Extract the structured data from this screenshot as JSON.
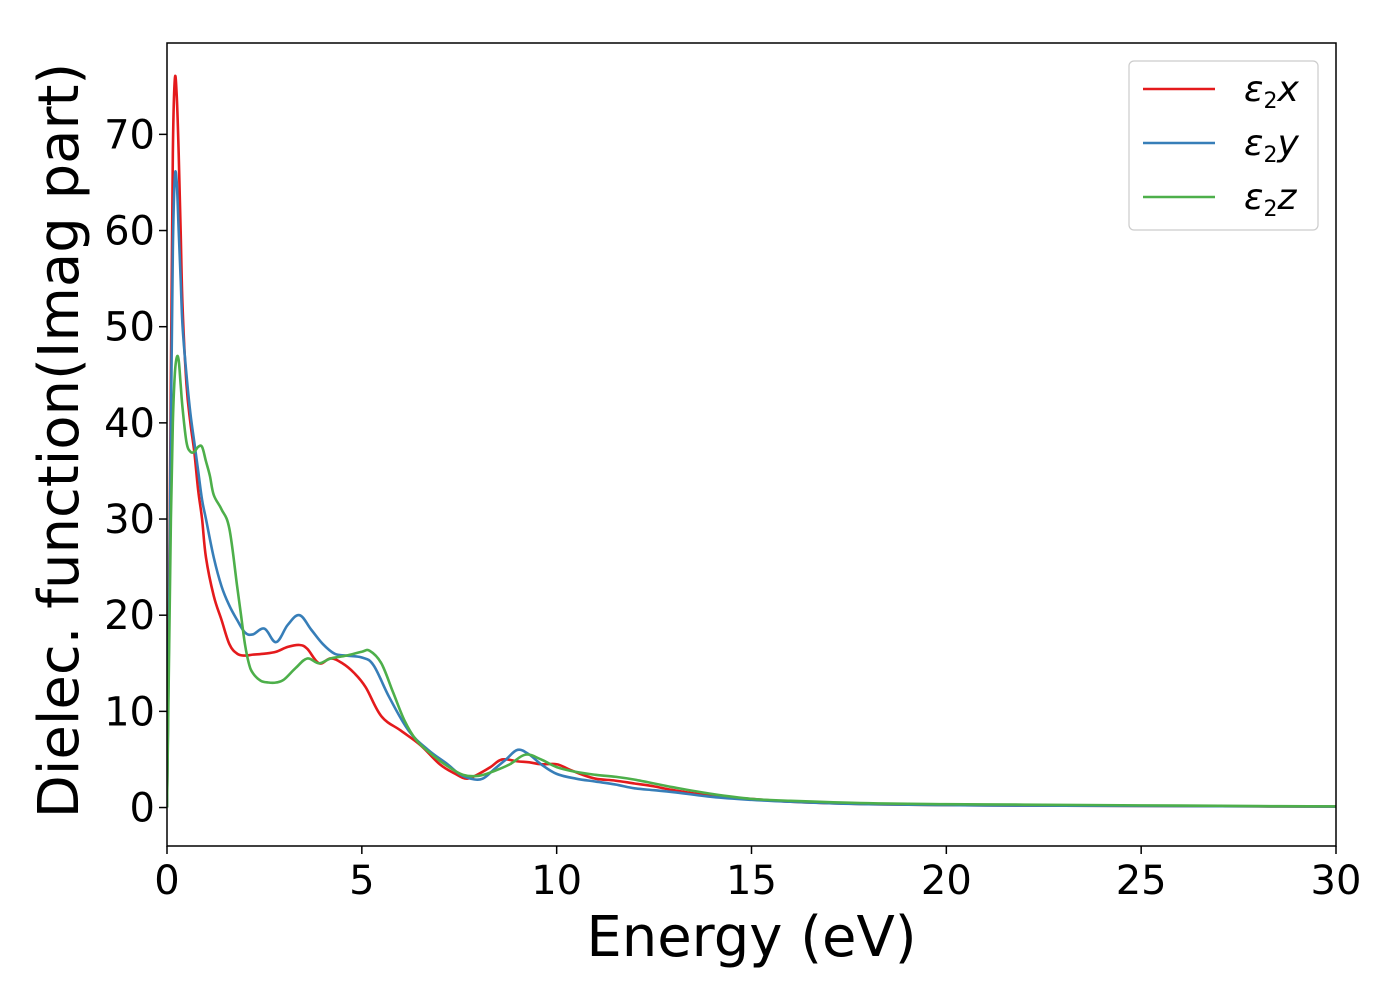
{
  "chart_data": {
    "type": "line",
    "title": "",
    "xlabel": "Energy (eV)",
    "ylabel": "Dielec. function(Imag part)",
    "xlim": [
      0,
      30
    ],
    "ylim": [
      -4,
      79.5
    ],
    "xticks": [
      0,
      5,
      10,
      15,
      20,
      25,
      30
    ],
    "yticks": [
      0,
      10,
      20,
      30,
      40,
      50,
      60,
      70
    ],
    "grid": false,
    "legend_position": "top-right",
    "series": [
      {
        "name": "ε2x",
        "legend": {
          "base": "ε",
          "sub": "2",
          "suffix": "x"
        },
        "color": "#e41a1c",
        "x": [
          0,
          0.05,
          0.1,
          0.15,
          0.2,
          0.25,
          0.3,
          0.35,
          0.4,
          0.5,
          0.6,
          0.7,
          0.8,
          0.9,
          1.0,
          1.2,
          1.4,
          1.6,
          1.8,
          2.0,
          2.2,
          2.5,
          2.8,
          3.1,
          3.4,
          3.6,
          3.9,
          4.2,
          4.5,
          4.8,
          5.1,
          5.5,
          6.0,
          6.5,
          7.0,
          7.4,
          7.7,
          8.0,
          8.3,
          8.6,
          9.0,
          9.3,
          9.6,
          10.0,
          10.3,
          10.6,
          11.0,
          11.5,
          12.0,
          12.5,
          13.0,
          14.0,
          15.0,
          16.0,
          17.0,
          18.0,
          19.0,
          20.0,
          22.0,
          24.0,
          26.0,
          28.0,
          30.0
        ],
        "y": [
          0,
          20,
          45,
          68,
          75.7,
          74,
          68,
          60,
          52,
          44,
          40,
          37,
          33,
          30,
          26,
          22,
          19.5,
          17,
          16,
          15.8,
          15.9,
          16,
          16.2,
          16.7,
          16.9,
          16.5,
          15,
          15.5,
          15,
          14,
          12.5,
          9.5,
          8,
          6.5,
          4.5,
          3.5,
          3,
          3.5,
          4.2,
          5,
          4.8,
          4.7,
          4.5,
          4.5,
          4,
          3.5,
          3,
          2.8,
          2.5,
          2.2,
          1.8,
          1.2,
          0.9,
          0.6,
          0.45,
          0.35,
          0.3,
          0.25,
          0.2,
          0.18,
          0.15,
          0.12,
          0.1
        ]
      },
      {
        "name": "ε2y",
        "legend": {
          "base": "ε",
          "sub": "2",
          "suffix": "y"
        },
        "color": "#377eb8",
        "x": [
          0,
          0.05,
          0.1,
          0.15,
          0.2,
          0.25,
          0.3,
          0.35,
          0.4,
          0.5,
          0.6,
          0.7,
          0.8,
          0.9,
          1.0,
          1.2,
          1.4,
          1.6,
          1.8,
          2.0,
          2.2,
          2.5,
          2.8,
          3.1,
          3.4,
          3.7,
          4.0,
          4.3,
          4.6,
          5.0,
          5.3,
          5.7,
          6.2,
          6.7,
          7.2,
          7.5,
          7.8,
          8.1,
          8.4,
          8.7,
          9.0,
          9.3,
          9.6,
          10.0,
          10.5,
          11.0,
          11.5,
          12.0,
          12.5,
          13.0,
          14.0,
          15.0,
          16.0,
          17.0,
          18.0,
          20.0,
          22.0,
          24.0,
          26.0,
          28.0,
          30.0
        ],
        "y": [
          0,
          18,
          40,
          58,
          65.5,
          65,
          60,
          55,
          50,
          45,
          41,
          38,
          35,
          32,
          30,
          26,
          23,
          21,
          19.5,
          18.2,
          18,
          18.6,
          17.2,
          19,
          20,
          18.5,
          17,
          16,
          15.8,
          15.6,
          14.8,
          11.5,
          8,
          6,
          4.5,
          3.5,
          3,
          3,
          4,
          5,
          6,
          5.5,
          4.5,
          3.5,
          3,
          2.7,
          2.4,
          2,
          1.8,
          1.6,
          1.1,
          0.8,
          0.6,
          0.45,
          0.35,
          0.25,
          0.2,
          0.18,
          0.15,
          0.12,
          0.1
        ]
      },
      {
        "name": "ε2z",
        "legend": {
          "base": "ε",
          "sub": "2",
          "suffix": "z"
        },
        "color": "#4daf4a",
        "x": [
          0,
          0.05,
          0.1,
          0.15,
          0.2,
          0.25,
          0.3,
          0.35,
          0.4,
          0.5,
          0.6,
          0.7,
          0.8,
          0.9,
          1.0,
          1.1,
          1.2,
          1.4,
          1.6,
          1.8,
          1.9,
          2.0,
          2.1,
          2.2,
          2.4,
          2.6,
          2.8,
          3.0,
          3.3,
          3.6,
          3.9,
          4.2,
          4.6,
          5.0,
          5.2,
          5.5,
          5.8,
          6.1,
          6.4,
          6.8,
          7.2,
          7.6,
          8.0,
          8.4,
          8.8,
          9.2,
          9.6,
          10.0,
          10.5,
          11.0,
          11.5,
          12.0,
          13.0,
          14.0,
          15.0,
          16.0,
          18.0,
          20.0,
          22.0,
          24.0,
          26.0,
          28.0,
          30.0
        ],
        "y": [
          0,
          15,
          30,
          40,
          45,
          46.8,
          46.5,
          44,
          41.5,
          38,
          37,
          37,
          37.5,
          37.5,
          36,
          34.5,
          32.5,
          31,
          29,
          23,
          20,
          17,
          15,
          14,
          13.2,
          13,
          13,
          13.3,
          14.5,
          15.5,
          15,
          15.5,
          15.8,
          16.2,
          16.3,
          15,
          12,
          9,
          7,
          5.5,
          4.3,
          3.4,
          3.3,
          3.8,
          4.5,
          5.5,
          5,
          4.2,
          3.7,
          3.4,
          3.2,
          2.9,
          2.1,
          1.4,
          0.9,
          0.7,
          0.45,
          0.35,
          0.3,
          0.25,
          0.2,
          0.15,
          0.12
        ]
      }
    ]
  }
}
